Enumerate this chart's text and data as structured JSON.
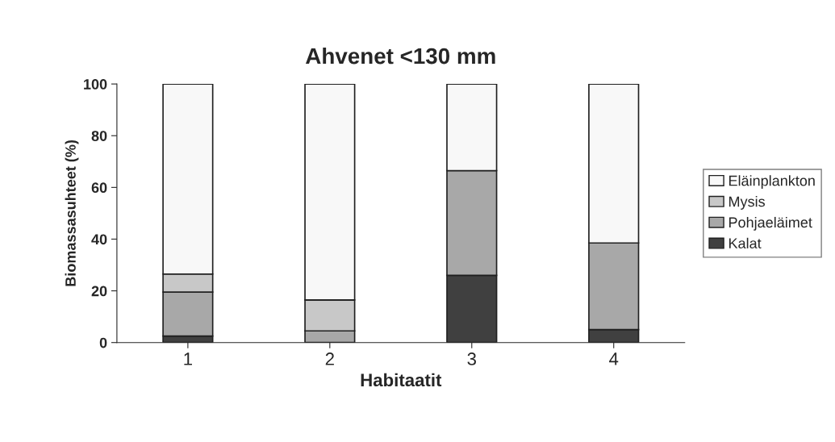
{
  "chart_data": {
    "type": "bar",
    "title": "Ahvenet <130 mm",
    "xlabel": "Habitaatit",
    "ylabel": "Biomassasuhteet (%)",
    "categories": [
      "1",
      "2",
      "3",
      "4"
    ],
    "stacked": true,
    "series": [
      {
        "name": "Kalat",
        "color": "#404040",
        "values": [
          2.5,
          0,
          26,
          5
        ]
      },
      {
        "name": "Pohjaeläimet",
        "color": "#a8a8a8",
        "values": [
          17,
          4.5,
          40.5,
          33.5
        ]
      },
      {
        "name": "Mysis",
        "color": "#c8c8c8",
        "values": [
          7,
          12,
          0,
          0
        ]
      },
      {
        "name": "Eläinplankton",
        "color": "#f8f8f8",
        "values": [
          73.5,
          83.5,
          33.5,
          61.5
        ]
      }
    ],
    "ylim": [
      0,
      100
    ],
    "yticks": [
      0,
      20,
      40,
      60,
      80,
      100
    ],
    "grid": false,
    "legend": "right"
  }
}
